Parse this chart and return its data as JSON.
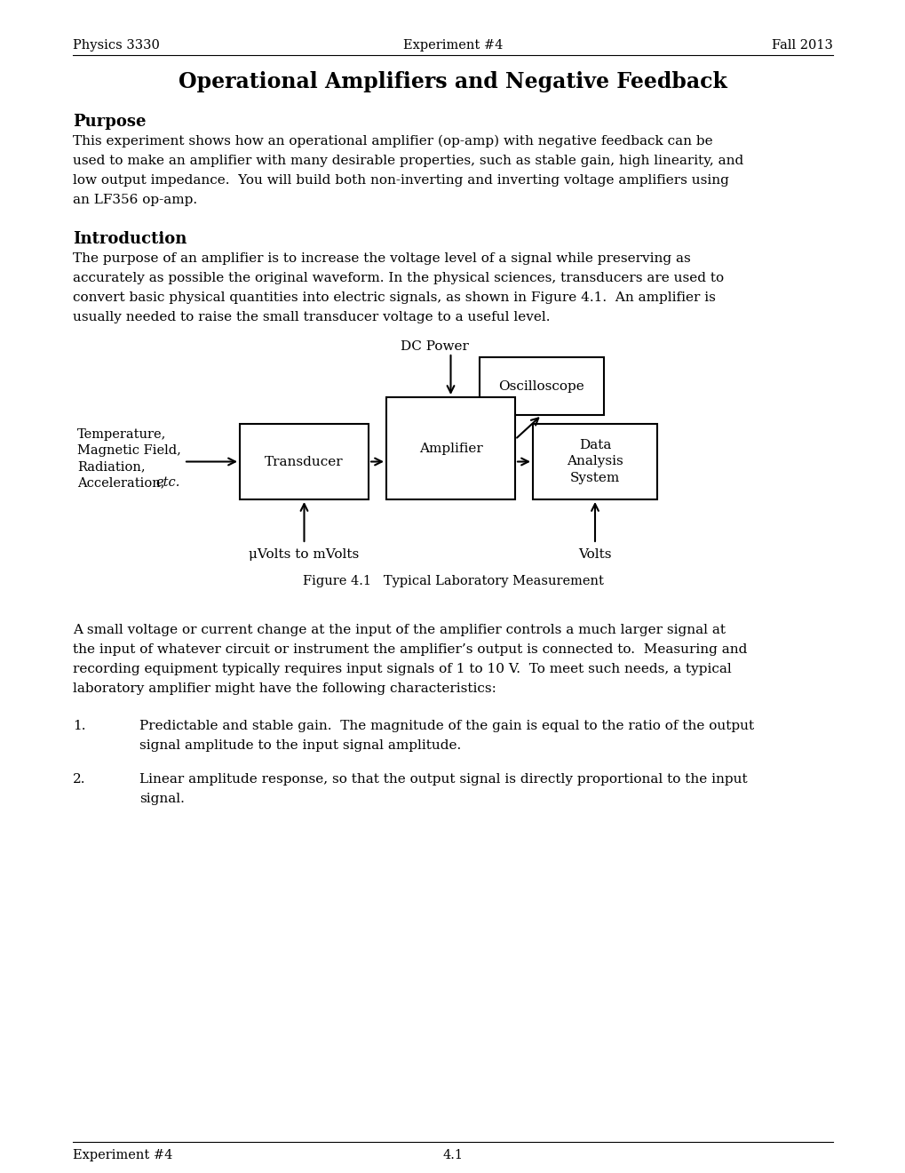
{
  "header_left": "Physics 3330",
  "header_center": "Experiment #4",
  "header_right": "Fall 2013",
  "title": "Operational Amplifiers and Negative Feedback",
  "purpose_heading": "Purpose",
  "purpose_lines": [
    "This experiment shows how an operational amplifier (op-amp) with negative feedback can be",
    "used to make an amplifier with many desirable properties, such as stable gain, high linearity, and",
    "low output impedance.  You will build both non-inverting and inverting voltage amplifiers using",
    "an LF356 op-amp."
  ],
  "intro_heading": "Introduction",
  "intro_lines": [
    "The purpose of an amplifier is to increase the voltage level of a signal while preserving as",
    "accurately as possible the original waveform. In the physical sciences, transducers are used to",
    "convert basic physical quantities into electric signals, as shown in Figure 4.1.  An amplifier is",
    "usually needed to raise the small transducer voltage to a useful level."
  ],
  "fig_caption": "Figure 4.1   Typical Laboratory Measurement",
  "para2_lines": [
    "A small voltage or current change at the input of the amplifier controls a much larger signal at",
    "the input of whatever circuit or instrument the amplifier’s output is connected to.  Measuring and",
    "recording equipment typically requires input signals of 1 to 10 V.  To meet such needs, a typical",
    "laboratory amplifier might have the following characteristics:"
  ],
  "item1_lines": [
    "Predictable and stable gain.  The magnitude of the gain is equal to the ratio of the output",
    "signal amplitude to the input signal amplitude."
  ],
  "item2_lines": [
    "Linear amplitude response, so that the output signal is directly proportional to the input",
    "signal."
  ],
  "footer_left": "Experiment #4",
  "footer_center": "4.1",
  "background": "#ffffff",
  "text_color": "#000000"
}
